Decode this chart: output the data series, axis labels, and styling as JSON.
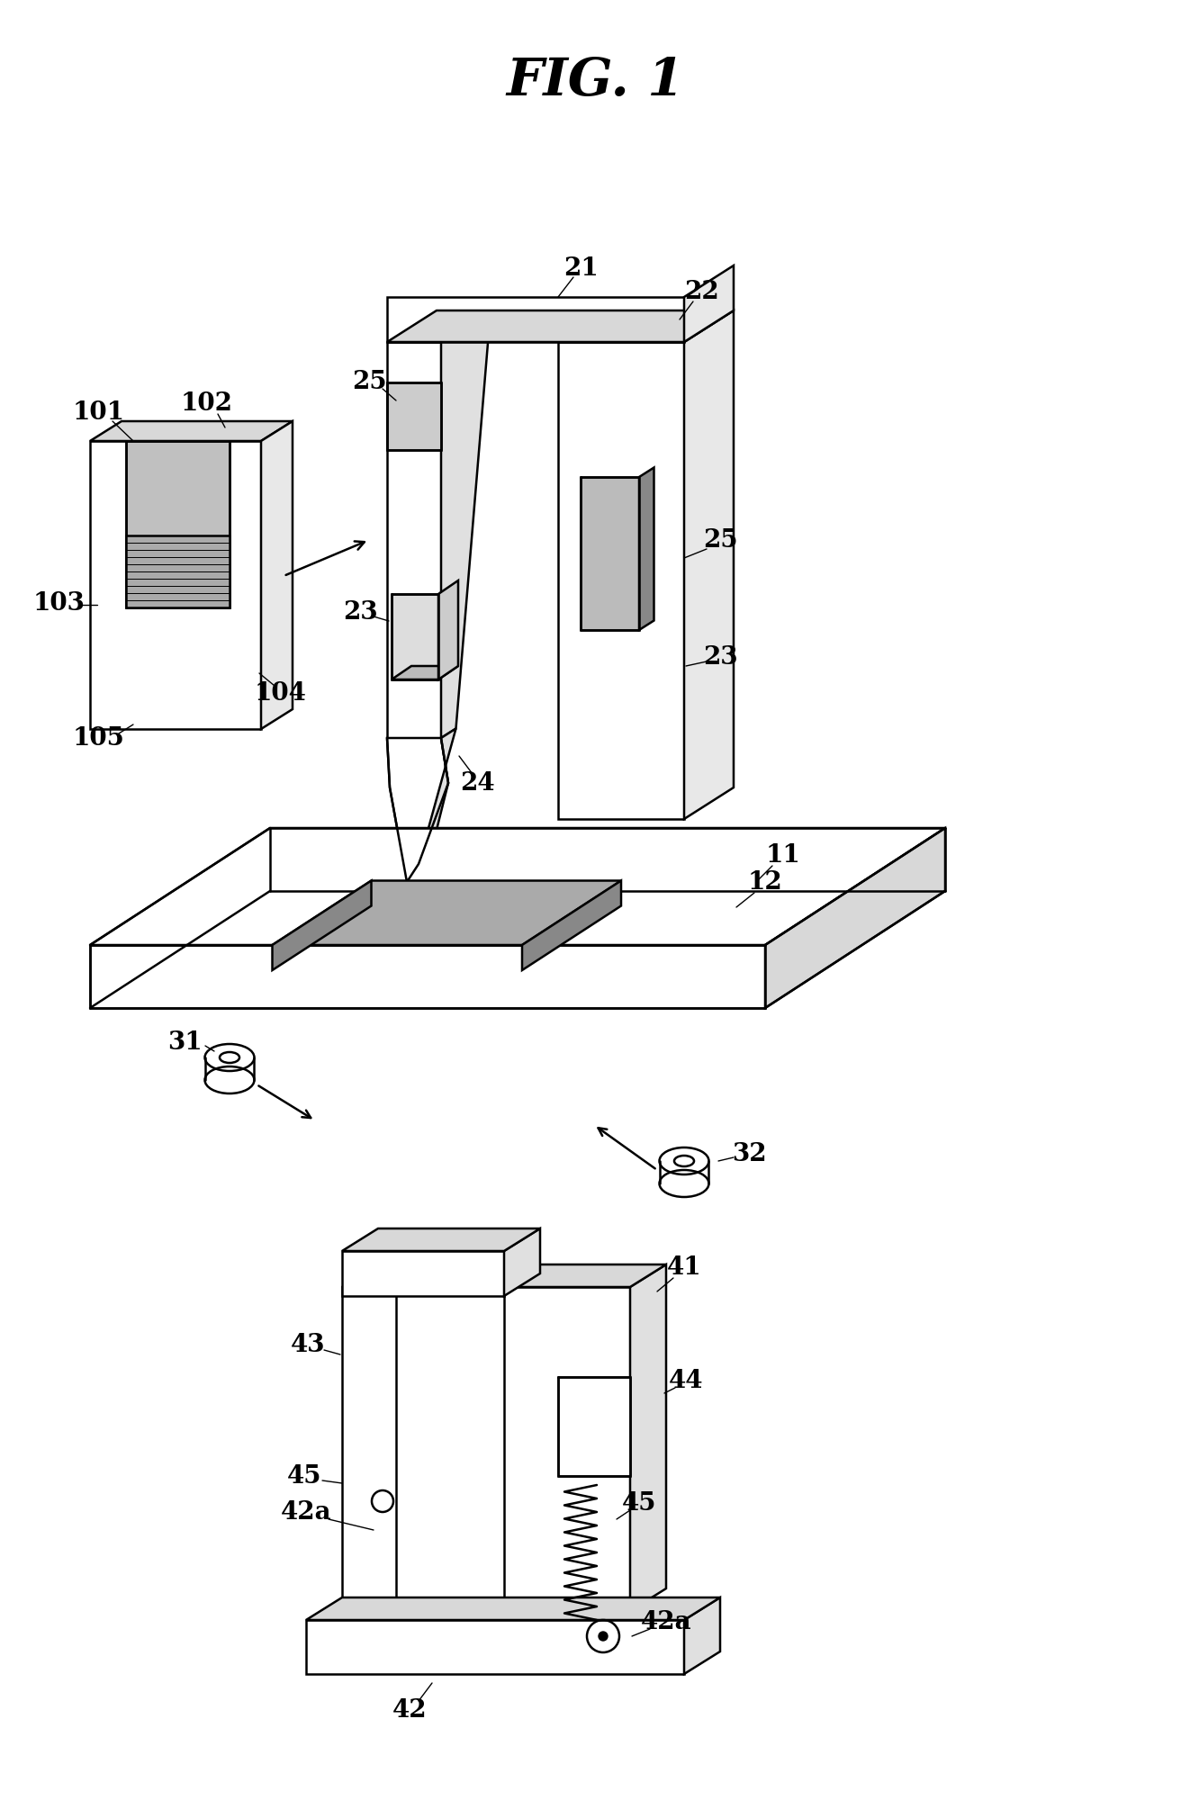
{
  "title": "FIG. 1",
  "bg_color": "#ffffff",
  "line_color": "#000000",
  "line_width": 1.8,
  "label_fontsize": 20,
  "title_fontsize": 42
}
